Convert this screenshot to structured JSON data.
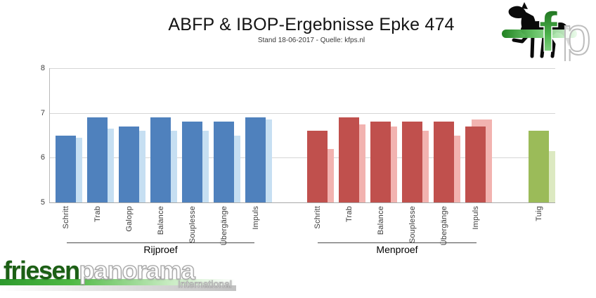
{
  "header": {
    "title": "ABFP & IBOP-Ergebnisse Epke 474",
    "subtitle": "Stand 18-06-2017 - Quelle: kfps.nl"
  },
  "chart_data": {
    "type": "bar",
    "title": "ABFP & IBOP-Ergebnisse Epke 474",
    "subtitle": "Stand 18-06-2017 - Quelle: kfps.nl",
    "ylim": [
      5,
      8
    ],
    "yticks": [
      5,
      6,
      7,
      8
    ],
    "grid": true,
    "legend_position": "none",
    "groups": [
      {
        "name": "Rijproef",
        "underline": true,
        "color_dark": "#4f81bd",
        "color_light": "#c6dff2",
        "categories": [
          "Schritt",
          "Trab",
          "Galopp",
          "Balance",
          "Souplesse",
          "Übergänge",
          "Impuls"
        ],
        "values_dark": [
          6.5,
          6.9,
          6.7,
          6.9,
          6.8,
          6.8,
          6.9
        ],
        "values_light": [
          6.45,
          6.65,
          6.6,
          6.6,
          6.6,
          6.5,
          6.85
        ]
      },
      {
        "name": "Menproef",
        "underline": true,
        "color_dark": "#c0504d",
        "color_light": "#f2b3b0",
        "categories": [
          "Schritt",
          "Trab",
          "Balance",
          "Souplesse",
          "Übergänge",
          "Impuls"
        ],
        "values_dark": [
          6.6,
          6.9,
          6.8,
          6.8,
          6.8,
          6.7
        ],
        "values_light": [
          6.2,
          6.75,
          6.7,
          6.6,
          6.5,
          6.85
        ]
      },
      {
        "name": "",
        "underline": false,
        "color_dark": "#9bbb59",
        "color_light": "#dce9c1",
        "categories": [
          "Tuig"
        ],
        "values_dark": [
          6.6
        ],
        "values_light": [
          6.15
        ]
      }
    ]
  },
  "logo_kfp": {
    "letter_f": "f",
    "letter_p": "p",
    "green_dark": "#136013",
    "green_light": "#a9e7a9"
  },
  "logo_friesenpanorama": {
    "part1": "friesen",
    "part2": "panorama",
    "subtext": "International"
  }
}
